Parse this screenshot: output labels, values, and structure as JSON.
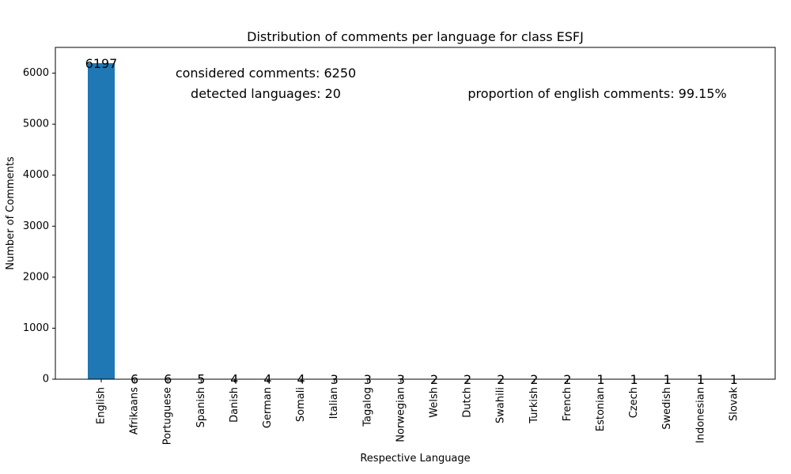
{
  "chart_data": {
    "type": "bar",
    "title": "Distribution of comments per language for class ESFJ",
    "xlabel": "Respective Language",
    "ylabel": "Number of Comments",
    "categories": [
      "English",
      "Afrikaans",
      "Portuguese",
      "Spanish",
      "Danish",
      "German",
      "Somali",
      "Italian",
      "Tagalog",
      "Norwegian",
      "Welsh",
      "Dutch",
      "Swahili",
      "Turkish",
      "French",
      "Estonian",
      "Czech",
      "Swedish",
      "Indonesian",
      "Slovak"
    ],
    "values": [
      6197,
      6,
      6,
      5,
      4,
      4,
      4,
      3,
      3,
      3,
      2,
      2,
      2,
      2,
      2,
      1,
      1,
      1,
      1,
      1
    ],
    "ylim": [
      0,
      6505
    ],
    "yticks": [
      0,
      1000,
      2000,
      3000,
      4000,
      5000,
      6000
    ],
    "bar_color": "#1f77b4",
    "grid": false,
    "annotations": {
      "considered": "considered comments: 6250",
      "detected": "detected languages: 20",
      "proportion": "proportion of english comments: 99.15%"
    }
  }
}
